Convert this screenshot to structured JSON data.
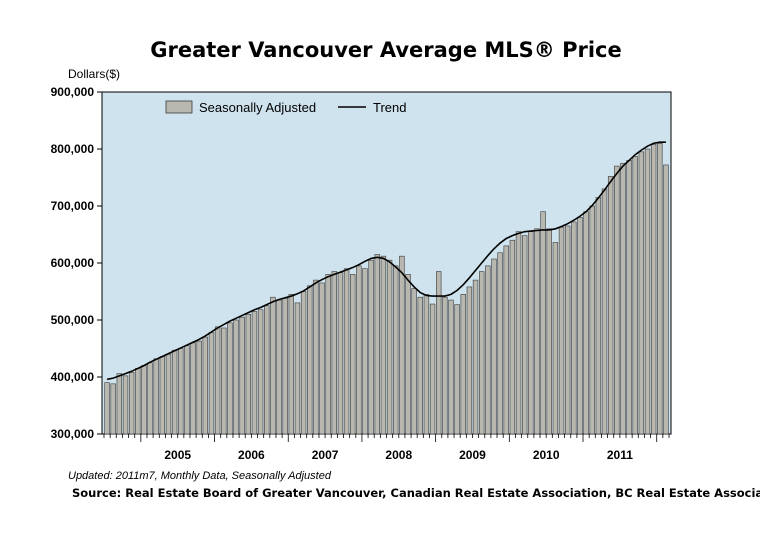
{
  "chart_data": {
    "type": "bar",
    "title": "Greater Vancouver Average MLS® Price",
    "ylabel": "Dollars($)",
    "xlabel": "",
    "ylim": [
      300000,
      900000
    ],
    "yticks": [
      300000,
      400000,
      500000,
      600000,
      700000,
      800000,
      900000
    ],
    "ytick_labels": [
      "300,000",
      "400,000",
      "500,000",
      "600,000",
      "700,000",
      "800,000",
      "900,000"
    ],
    "x_start": "2004-07",
    "x_end": "2011-07",
    "year_labels": [
      "2005",
      "2006",
      "2007",
      "2008",
      "2009",
      "2010",
      "2011"
    ],
    "grid": false,
    "legend_position": "top-left",
    "legend": [
      "Seasonally Adjusted",
      "Trend"
    ],
    "colors": {
      "plot_background": "#cfe3ee",
      "bar_fill": "#b8b8b0",
      "trend_line": "#000000"
    },
    "series": [
      {
        "name": "Seasonally Adjusted",
        "type": "bar",
        "values": [
          390000,
          388000,
          406000,
          402000,
          408000,
          415000,
          420000,
          425000,
          432000,
          436000,
          440000,
          447000,
          450000,
          455000,
          460000,
          463000,
          470000,
          478000,
          488000,
          486000,
          495000,
          500000,
          505000,
          510000,
          515000,
          518000,
          525000,
          540000,
          535000,
          538000,
          545000,
          530000,
          550000,
          560000,
          570000,
          565000,
          580000,
          585000,
          583000,
          590000,
          580000,
          595000,
          590000,
          605000,
          615000,
          612000,
          605000,
          595000,
          612000,
          580000,
          555000,
          540000,
          545000,
          528000,
          585000,
          540000,
          535000,
          527000,
          545000,
          558000,
          570000,
          585000,
          595000,
          607000,
          618000,
          630000,
          640000,
          655000,
          648000,
          655000,
          660000,
          690000,
          660000,
          636000,
          663000,
          665000,
          672000,
          680000,
          690000,
          700000,
          715000,
          730000,
          752000,
          770000,
          775000,
          780000,
          787000,
          795000,
          800000,
          808000,
          810000,
          772000
        ]
      },
      {
        "name": "Trend",
        "type": "line",
        "values": [
          396000,
          398000,
          402000,
          406000,
          410000,
          415000,
          420000,
          426000,
          431000,
          436000,
          441000,
          446000,
          451000,
          456000,
          461000,
          466000,
          472000,
          479000,
          486000,
          492000,
          498000,
          503000,
          508000,
          513000,
          518000,
          522000,
          527000,
          532000,
          536000,
          539000,
          542000,
          546000,
          551000,
          558000,
          565000,
          571000,
          576000,
          580000,
          584000,
          588000,
          592000,
          597000,
          603000,
          608000,
          610000,
          608000,
          602000,
          593000,
          583000,
          570000,
          558000,
          548000,
          543000,
          542000,
          542000,
          542000,
          545000,
          552000,
          562000,
          574000,
          587000,
          600000,
          613000,
          625000,
          635000,
          643000,
          648000,
          652000,
          655000,
          656000,
          657000,
          658000,
          658000,
          660000,
          664000,
          669000,
          675000,
          682000,
          690000,
          701000,
          714000,
          728000,
          743000,
          757000,
          770000,
          780000,
          790000,
          798000,
          805000,
          810000,
          812000,
          812000
        ]
      }
    ]
  },
  "footer": {
    "note": "Updated: 2011m7, Monthly Data, Seasonally Adjusted",
    "source": "Source: Real Estate Board of Greater Vancouver, Canadian Real Estate Association, BC Real Estate Association"
  }
}
